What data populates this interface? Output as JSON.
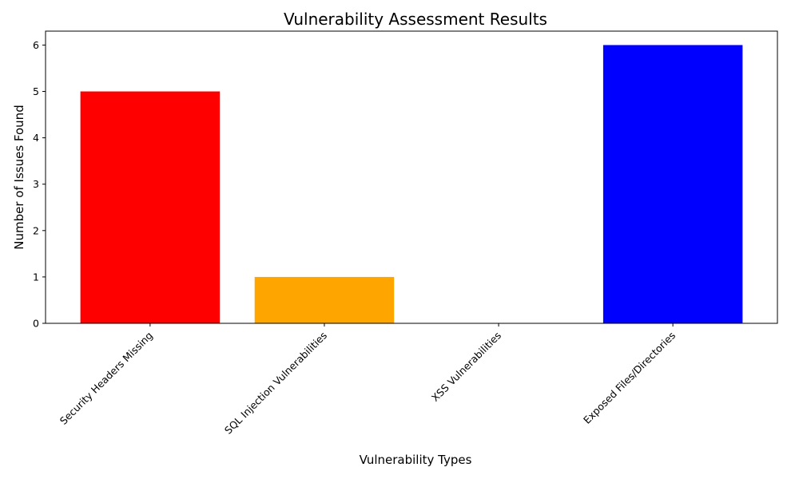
{
  "chart_data": {
    "type": "bar",
    "title": "Vulnerability Assessment Results",
    "xlabel": "Vulnerability Types",
    "ylabel": "Number of Issues Found",
    "categories": [
      "Security Headers Missing",
      "SQL Injection Vulnerabilities",
      "XSS Vulnerabilities",
      "Exposed Files/Directories"
    ],
    "values": [
      5,
      1,
      0,
      6
    ],
    "colors": [
      "#ff0000",
      "#ffa500",
      "#008000",
      "#0000ff"
    ],
    "ylim": [
      0,
      6.3
    ],
    "yticks": [
      0,
      1,
      2,
      3,
      4,
      5,
      6
    ],
    "grid": false,
    "legend": false
  }
}
